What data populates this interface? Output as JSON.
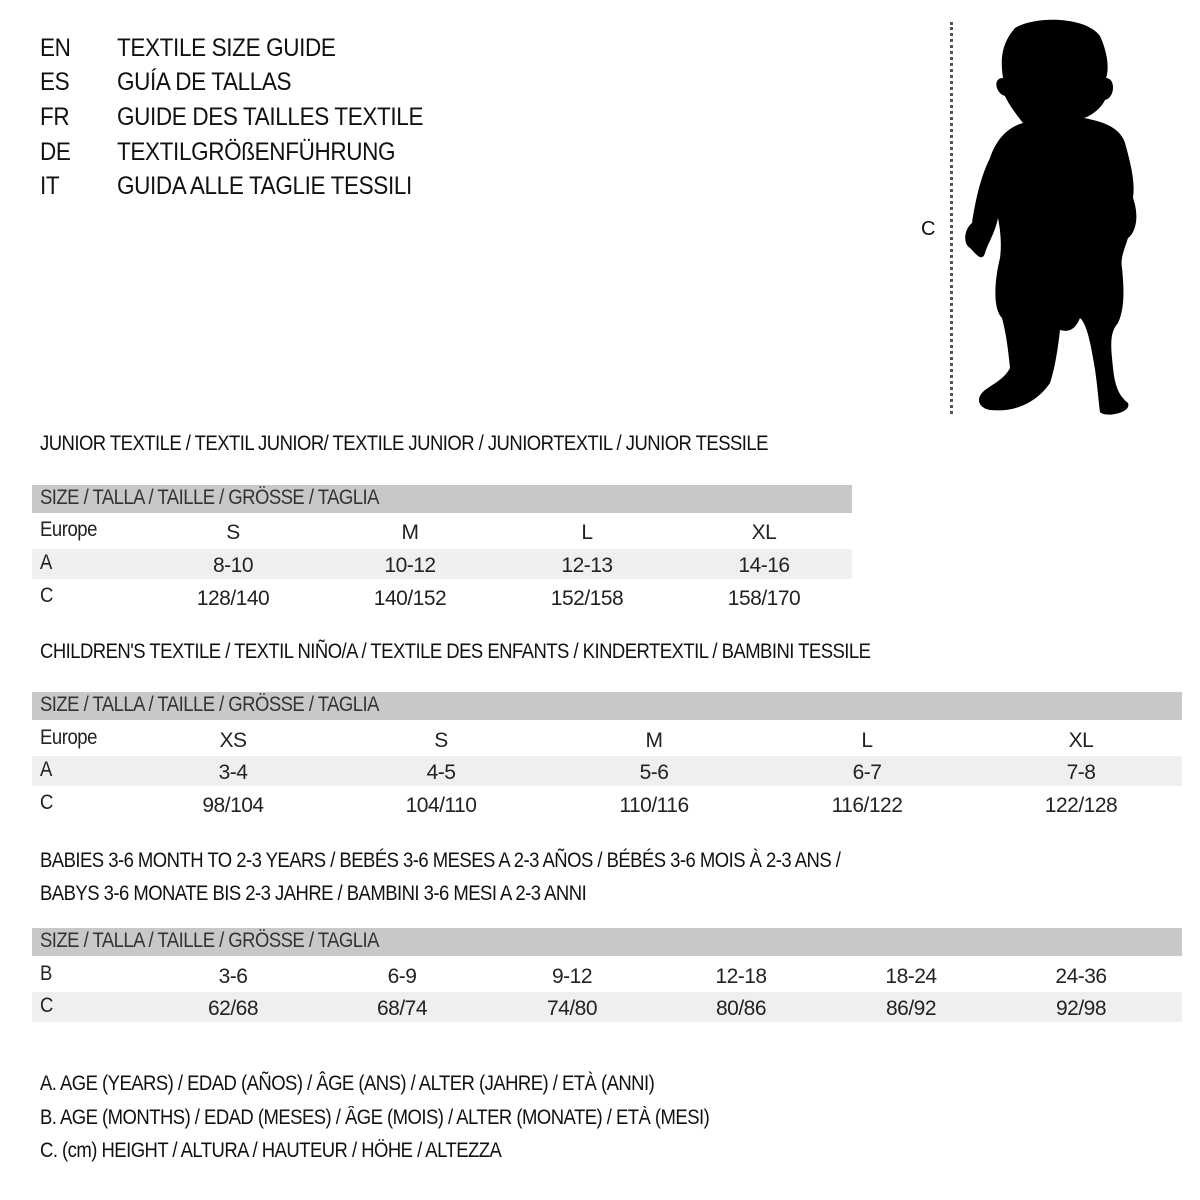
{
  "header": {
    "languages": [
      {
        "code": "EN",
        "title": "TEXTILE SIZE GUIDE"
      },
      {
        "code": "ES",
        "title": "GUÍA DE TALLAS"
      },
      {
        "code": "FR",
        "title": "GUIDE DES TAILLES TEXTILE"
      },
      {
        "code": "DE",
        "title": "TEXTILGRÖßENFÜHRUNG"
      },
      {
        "code": "IT",
        "title": "GUIDA ALLE TAGLIE TESSILI"
      }
    ]
  },
  "figure": {
    "measure_label": "C",
    "icon": "child-silhouette-icon"
  },
  "size_header": "SIZE / TALLA / TAILLE / GRÖSSE / TAGLIA",
  "tables": [
    {
      "heading": [
        "JUNIOR TEXTILE / TEXTIL JUNIOR/ TEXTILE JUNIOR / JUNIORTEXTIL / JUNIOR TESSILE"
      ],
      "rows": [
        {
          "label": "Europe",
          "values": [
            "S",
            "M",
            "L",
            "XL"
          ]
        },
        {
          "label": "A",
          "values": [
            "8-10",
            "10-12",
            "12-13",
            "14-16"
          ]
        },
        {
          "label": "C",
          "values": [
            "128/140",
            "140/152",
            "152/158",
            "158/170"
          ]
        }
      ]
    },
    {
      "heading": [
        "CHILDREN'S TEXTILE / TEXTIL NIÑO/A / TEXTILE DES ENFANTS / KINDERTEXTIL / BAMBINI TESSILE"
      ],
      "rows": [
        {
          "label": "Europe",
          "values": [
            "XS",
            "S",
            "M",
            "L",
            "XL"
          ]
        },
        {
          "label": "A",
          "values": [
            "3-4",
            "4-5",
            "5-6",
            "6-7",
            "7-8"
          ]
        },
        {
          "label": "C",
          "values": [
            "98/104",
            "104/110",
            "110/116",
            "116/122",
            "122/128"
          ]
        }
      ]
    },
    {
      "heading": [
        "BABIES 3-6 MONTH TO 2-3 YEARS / BEBÉS 3-6 MESES A 2-3 AÑOS / BÉBÉS 3-6 MOIS À 2-3 ANS /",
        "BABYS 3-6 MONATE BIS 2-3 JAHRE / BAMBINI 3-6 MESI A 2-3 ANNI"
      ],
      "rows": [
        {
          "label": "B",
          "values": [
            "3-6",
            "6-9",
            "9-12",
            "12-18",
            "18-24",
            "24-36"
          ]
        },
        {
          "label": "C",
          "values": [
            "62/68",
            "68/74",
            "74/80",
            "80/86",
            "86/92",
            "92/98"
          ]
        }
      ]
    }
  ],
  "legend": [
    "A. AGE (YEARS) / EDAD (AÑOS) / ÂGE (ANS) / ALTER (JAHRE) / ETÀ (ANNI)",
    "B. AGE (MONTHS) / EDAD (MESES) / ÂGE (MOIS) / ALTER (MONATE) / ETÀ (MESI)",
    "C. (cm) HEIGHT / ALTURA / HAUTEUR / HÖHE / ALTEZZA"
  ]
}
